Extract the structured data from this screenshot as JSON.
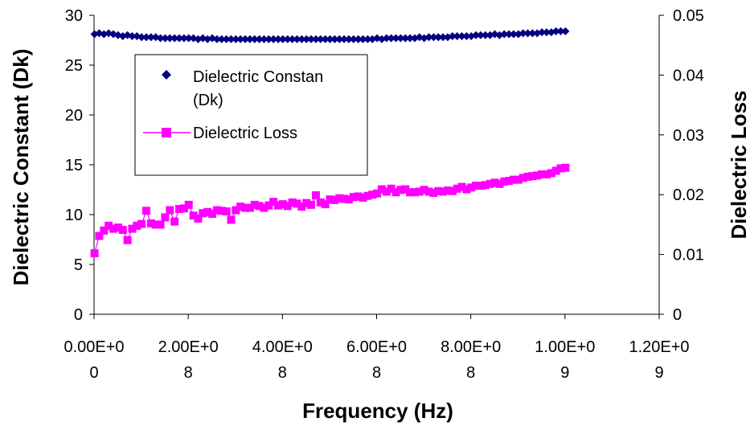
{
  "chart_data": {
    "type": "scatter",
    "xlabel": "Frequency (Hz)",
    "ylabel_left": "Dielectric Constant (Dk)",
    "ylabel_right": "Dielectric Loss",
    "xlim": [
      0,
      1200000000
    ],
    "ylim_left": [
      0,
      30
    ],
    "ylim_right": [
      0,
      0.05
    ],
    "grid": false,
    "legend_position": "upper-left inside plot",
    "x_ticks": [
      0,
      200000000,
      400000000,
      600000000,
      800000000,
      1000000000,
      1200000000
    ],
    "x_tick_labels": [
      {
        "line1": "0.00E+0",
        "line2": "0"
      },
      {
        "line1": "2.00E+0",
        "line2": "8"
      },
      {
        "line1": "4.00E+0",
        "line2": "8"
      },
      {
        "line1": "6.00E+0",
        "line2": "8"
      },
      {
        "line1": "8.00E+0",
        "line2": "8"
      },
      {
        "line1": "1.00E+0",
        "line2": "9"
      },
      {
        "line1": "1.20E+0",
        "line2": "9"
      }
    ],
    "y_left_ticks": [
      0,
      5,
      10,
      15,
      20,
      25,
      30
    ],
    "y_left_tick_labels": [
      "0",
      "5",
      "10",
      "15",
      "20",
      "25",
      "30"
    ],
    "y_right_ticks": [
      0,
      0.01,
      0.02,
      0.03,
      0.04,
      0.05
    ],
    "y_right_tick_labels": [
      "0",
      "0.01",
      "0.02",
      "0.03",
      "0.04",
      "0.05"
    ],
    "series": [
      {
        "name": "Dielectric Constan (Dk)",
        "legend_line1": "Dielectric Constan",
        "legend_line2": "(Dk)",
        "axis": "left",
        "marker": "diamond",
        "line": false,
        "color": "#000080",
        "x": [
          1000000,
          11000000,
          21000000,
          31000000,
          41000000,
          51000000,
          61000000,
          71000000,
          81000000,
          91000000,
          101000000,
          111000000,
          121000000,
          131000000,
          141000000,
          151000000,
          161000000,
          171000000,
          181000000,
          191000000,
          201000000,
          211000000,
          221000000,
          231000000,
          241000000,
          251000000,
          261000000,
          271000000,
          281000000,
          291000000,
          301000000,
          311000000,
          321000000,
          331000000,
          341000000,
          351000000,
          361000000,
          371000000,
          381000000,
          391000000,
          401000000,
          411000000,
          421000000,
          431000000,
          441000000,
          451000000,
          461000000,
          471000000,
          481000000,
          491000000,
          501000000,
          511000000,
          521000000,
          531000000,
          541000000,
          551000000,
          561000000,
          571000000,
          581000000,
          591000000,
          601000000,
          611000000,
          621000000,
          631000000,
          641000000,
          651000000,
          661000000,
          671000000,
          681000000,
          691000000,
          701000000,
          711000000,
          721000000,
          731000000,
          741000000,
          751000000,
          761000000,
          771000000,
          781000000,
          791000000,
          801000000,
          811000000,
          821000000,
          831000000,
          841000000,
          851000000,
          861000000,
          871000000,
          881000000,
          891000000,
          901000000,
          911000000,
          921000000,
          931000000,
          941000000,
          951000000,
          961000000,
          971000000,
          981000000,
          991000000,
          1001000000
        ],
        "y": [
          28.1,
          28.2,
          28.1,
          28.2,
          28.1,
          28.0,
          27.9,
          28.0,
          27.9,
          27.9,
          27.8,
          27.8,
          27.8,
          27.8,
          27.7,
          27.7,
          27.7,
          27.7,
          27.7,
          27.7,
          27.7,
          27.7,
          27.6,
          27.7,
          27.6,
          27.7,
          27.6,
          27.6,
          27.6,
          27.6,
          27.6,
          27.6,
          27.6,
          27.6,
          27.6,
          27.6,
          27.6,
          27.6,
          27.6,
          27.6,
          27.6,
          27.6,
          27.6,
          27.6,
          27.6,
          27.6,
          27.6,
          27.6,
          27.6,
          27.6,
          27.6,
          27.6,
          27.6,
          27.6,
          27.6,
          27.6,
          27.6,
          27.6,
          27.6,
          27.6,
          27.7,
          27.6,
          27.7,
          27.7,
          27.7,
          27.7,
          27.7,
          27.7,
          27.7,
          27.8,
          27.7,
          27.8,
          27.8,
          27.8,
          27.8,
          27.8,
          27.9,
          27.9,
          27.9,
          27.9,
          27.9,
          28.0,
          28.0,
          28.0,
          28.0,
          28.1,
          28.0,
          28.1,
          28.1,
          28.1,
          28.1,
          28.2,
          28.2,
          28.2,
          28.2,
          28.3,
          28.3,
          28.3,
          28.4,
          28.4,
          28.4
        ]
      },
      {
        "name": "Dielectric Loss",
        "axis": "right",
        "marker": "square",
        "line": true,
        "color": "#ff00ff",
        "x": [
          1000000,
          11000000,
          21000000,
          31000000,
          41000000,
          51000000,
          61000000,
          71000000,
          81000000,
          91000000,
          101000000,
          111000000,
          121000000,
          131000000,
          141000000,
          151000000,
          161000000,
          171000000,
          181000000,
          191000000,
          201000000,
          211000000,
          221000000,
          231000000,
          241000000,
          251000000,
          261000000,
          271000000,
          281000000,
          291000000,
          301000000,
          311000000,
          321000000,
          331000000,
          341000000,
          351000000,
          361000000,
          371000000,
          381000000,
          391000000,
          401000000,
          411000000,
          421000000,
          431000000,
          441000000,
          451000000,
          461000000,
          471000000,
          481000000,
          491000000,
          501000000,
          511000000,
          521000000,
          531000000,
          541000000,
          551000000,
          561000000,
          571000000,
          581000000,
          591000000,
          601000000,
          611000000,
          621000000,
          631000000,
          641000000,
          651000000,
          661000000,
          671000000,
          681000000,
          691000000,
          701000000,
          711000000,
          721000000,
          731000000,
          741000000,
          751000000,
          761000000,
          771000000,
          781000000,
          791000000,
          801000000,
          811000000,
          821000000,
          831000000,
          841000000,
          851000000,
          861000000,
          871000000,
          881000000,
          891000000,
          901000000,
          911000000,
          921000000,
          931000000,
          941000000,
          951000000,
          961000000,
          971000000,
          981000000,
          991000000,
          1001000000
        ],
        "y": [
          0.0102,
          0.0131,
          0.014,
          0.0148,
          0.0143,
          0.0145,
          0.0141,
          0.0124,
          0.0143,
          0.0148,
          0.0151,
          0.0173,
          0.0152,
          0.015,
          0.015,
          0.0162,
          0.0174,
          0.0155,
          0.0176,
          0.0177,
          0.0183,
          0.0165,
          0.016,
          0.0169,
          0.0171,
          0.0168,
          0.0174,
          0.0173,
          0.0172,
          0.0158,
          0.0174,
          0.018,
          0.0178,
          0.0178,
          0.0183,
          0.0181,
          0.0178,
          0.0182,
          0.0188,
          0.0182,
          0.0184,
          0.0181,
          0.0187,
          0.0185,
          0.018,
          0.0186,
          0.0183,
          0.0199,
          0.0187,
          0.0184,
          0.0192,
          0.0191,
          0.0194,
          0.0193,
          0.0192,
          0.0196,
          0.0197,
          0.0195,
          0.0198,
          0.02,
          0.0202,
          0.0209,
          0.0205,
          0.021,
          0.0204,
          0.0208,
          0.0209,
          0.0204,
          0.0204,
          0.0205,
          0.0208,
          0.0205,
          0.0203,
          0.0206,
          0.0205,
          0.0207,
          0.0206,
          0.021,
          0.0213,
          0.0209,
          0.0212,
          0.0215,
          0.0215,
          0.0216,
          0.0218,
          0.022,
          0.0218,
          0.0222,
          0.0223,
          0.0225,
          0.0225,
          0.0228,
          0.023,
          0.0231,
          0.0232,
          0.0234,
          0.0234,
          0.0236,
          0.024,
          0.0244,
          0.0245
        ]
      }
    ]
  }
}
